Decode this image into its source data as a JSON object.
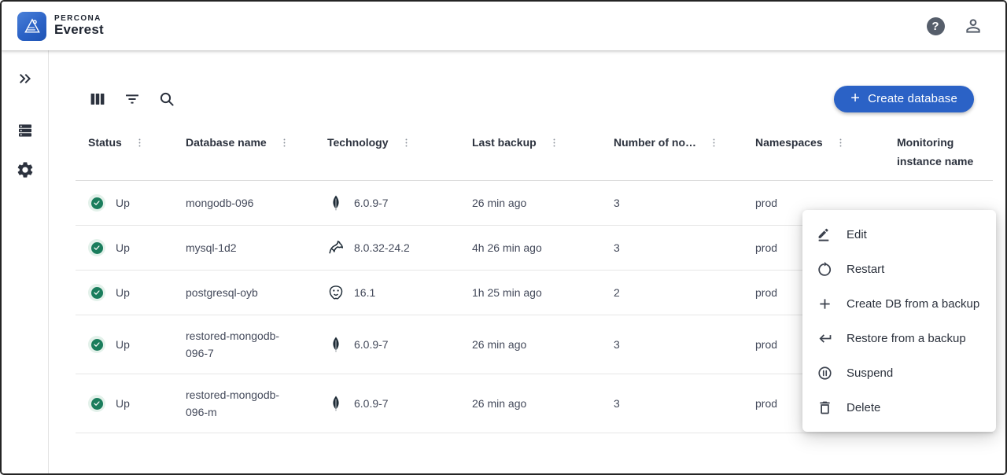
{
  "header": {
    "brand_top": "PERCONA",
    "brand_bottom": "Everest",
    "help_glyph": "?"
  },
  "toolbar": {
    "create_button_plus": "+",
    "create_button_label": "Create database"
  },
  "table": {
    "columns": [
      {
        "label": "Status",
        "menu": true
      },
      {
        "label": "Database name",
        "menu": true
      },
      {
        "label": "Technology",
        "menu": true
      },
      {
        "label": "Last backup",
        "menu": true
      },
      {
        "label": "Number of no…",
        "menu": true
      },
      {
        "label": "Namespaces",
        "menu": true
      },
      {
        "label": "Monitoring instance name",
        "menu": false
      }
    ],
    "rows": [
      {
        "status": "Up",
        "name": "mongodb-096",
        "technology": "mongodb",
        "version": "6.0.9-7",
        "last_backup": "26 min ago",
        "nodes": "3",
        "namespaces": "prod",
        "monitoring": ""
      },
      {
        "status": "Up",
        "name": "mysql-1d2",
        "technology": "mysql",
        "version": "8.0.32-24.2",
        "last_backup": "4h 26 min ago",
        "nodes": "3",
        "namespaces": "prod",
        "monitoring": ""
      },
      {
        "status": "Up",
        "name": "postgresql-oyb",
        "technology": "postgresql",
        "version": "16.1",
        "last_backup": "1h 25 min ago",
        "nodes": "2",
        "namespaces": "prod",
        "monitoring": ""
      },
      {
        "status": "Up",
        "name": "restored-mongodb-096-7",
        "technology": "mongodb",
        "version": "6.0.9-7",
        "last_backup": "26 min ago",
        "nodes": "3",
        "namespaces": "prod",
        "monitoring": ""
      },
      {
        "status": "Up",
        "name": "restored-mongodb-096-m",
        "technology": "mongodb",
        "version": "6.0.9-7",
        "last_backup": "26 min ago",
        "nodes": "3",
        "namespaces": "prod",
        "monitoring": ""
      }
    ]
  },
  "context_menu": {
    "items": [
      {
        "label": "Edit",
        "icon": "edit"
      },
      {
        "label": "Restart",
        "icon": "restart"
      },
      {
        "label": "Create DB from a backup",
        "icon": "plus"
      },
      {
        "label": "Restore from a backup",
        "icon": "return"
      },
      {
        "label": "Suspend",
        "icon": "pause-circle"
      },
      {
        "label": "Delete",
        "icon": "trash"
      }
    ]
  },
  "colors": {
    "primary_blue": "#2b62c6",
    "status_up_green": "#1a7d5c",
    "status_up_green_bg": "#e3f1ea",
    "text_dark": "#2c323e",
    "text_body": "#43495a"
  }
}
